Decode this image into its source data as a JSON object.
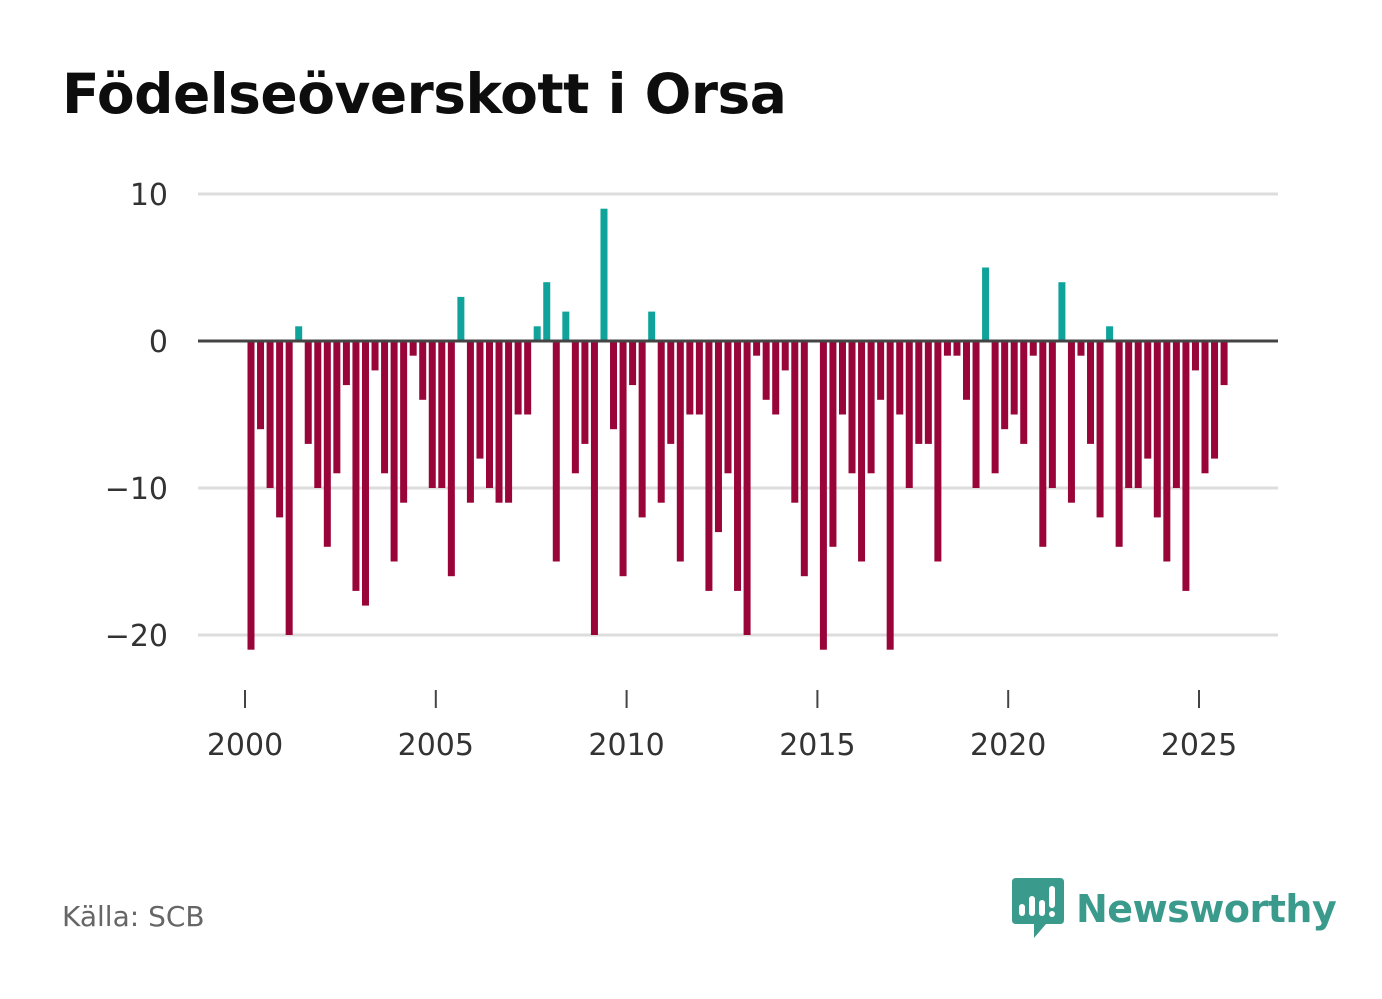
{
  "title": "Födelseöverskott i Orsa",
  "source": "Källa: SCB",
  "brand": {
    "name": "Newsworthy",
    "icon": "newsworthy-logo-icon"
  },
  "colors": {
    "positive": "#0fa39b",
    "negative": "#990538",
    "grid": "#dddddd",
    "zero_line": "#444444",
    "brand": "#3a9b8d"
  },
  "chart_data": {
    "type": "bar",
    "title": "Födelseöverskott i Orsa",
    "xlabel": "",
    "ylabel": "",
    "ylim": [
      -25,
      10
    ],
    "xlim": [
      2000,
      2027
    ],
    "grid": true,
    "y_ticks": [
      10,
      0,
      -10,
      -20
    ],
    "y_tick_labels": [
      "10",
      "0",
      "−10",
      "−20"
    ],
    "x_ticks": [
      2000,
      2005,
      2010,
      2015,
      2020,
      2025
    ],
    "x_tick_labels": [
      "2000",
      "2005",
      "2010",
      "2015",
      "2020",
      "2025"
    ],
    "frequency": "quarterly",
    "start": "2000 Q1",
    "values": [
      -21,
      -6,
      -10,
      -12,
      -20,
      1,
      -7,
      -10,
      -14,
      -9,
      -3,
      -17,
      -18,
      -2,
      -9,
      -15,
      -11,
      -1,
      -4,
      -10,
      -10,
      -16,
      3,
      -11,
      -8,
      -10,
      -11,
      -11,
      -5,
      -5,
      1,
      4,
      -15,
      2,
      -9,
      -7,
      -20,
      9,
      -6,
      -16,
      -3,
      -12,
      2,
      -11,
      -7,
      -15,
      -5,
      -5,
      -17,
      -13,
      -9,
      -17,
      -20,
      -1,
      -4,
      -5,
      -2,
      -11,
      -16,
      0,
      -21,
      -14,
      -5,
      -9,
      -15,
      -9,
      -4,
      -21,
      -5,
      -10,
      -7,
      -7,
      -15,
      -1,
      -1,
      -4,
      -10,
      5,
      -9,
      -6,
      -5,
      -7,
      -1,
      -14,
      -10,
      4,
      -11,
      -1,
      -7,
      -12,
      1,
      -14,
      -10,
      -10,
      -8,
      -12,
      -15,
      -10,
      -17,
      -2,
      -9,
      -8,
      -3
    ]
  }
}
